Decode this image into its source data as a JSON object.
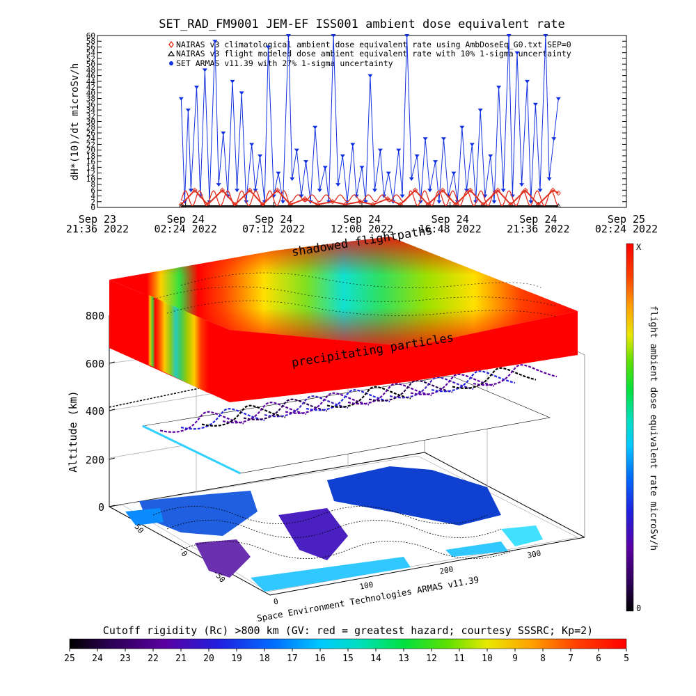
{
  "top_chart": {
    "title": "SET_RAD_FM9001  JEM-EF ISS001 ambient dose equivalent rate",
    "ylabel": "dH*(10)/dt microSv/h",
    "y_ticks": [
      "0",
      "2",
      "4",
      "6",
      "8",
      "10",
      "12",
      "14",
      "16",
      "18",
      "20",
      "22",
      "24",
      "26",
      "28",
      "30",
      "32",
      "34",
      "36",
      "38",
      "40",
      "42",
      "44",
      "46",
      "48",
      "50",
      "52",
      "54",
      "56",
      "58",
      "60"
    ],
    "x_ticks": [
      {
        "line1": "Sep 23",
        "line2": "21:36 2022"
      },
      {
        "line1": "Sep 24",
        "line2": "02:24 2022"
      },
      {
        "line1": "Sep 24",
        "line2": "07:12 2022"
      },
      {
        "line1": "Sep 24",
        "line2": "12:00 2022"
      },
      {
        "line1": "Sep 24",
        "line2": "16:48 2022"
      },
      {
        "line1": "Sep 24",
        "line2": "21:36 2022"
      },
      {
        "line1": "Sep 25",
        "line2": "02:24 2022"
      }
    ],
    "legend": [
      {
        "marker": "diamond",
        "color": "#e03020",
        "text": "NAIRAS v3 climatological ambient dose equivalent rate using AmbDoseEq_G0.txt SEP=0"
      },
      {
        "marker": "triangle",
        "color": "#000000",
        "text": "NAIRAS v3 flight modeled dose ambient equivalent rate with 10% 1-sigma uncertainty"
      },
      {
        "marker": "dot",
        "color": "#1030e0",
        "text": "SET ARMAS v11.39 with 27% 1-sigma uncertainty"
      }
    ]
  },
  "chart_data": {
    "type": "line",
    "title": "SET_RAD_FM9001  JEM-EF ISS001 ambient dose equivalent rate",
    "ylabel": "dH*(10)/dt microSv/h",
    "ylim": [
      0,
      60
    ],
    "xlim_hours_from_start": [
      0,
      28.8
    ],
    "x_unit": "hours since Sep 23 21:36 2022",
    "series": [
      {
        "name": "SET ARMAS v11.39 with 27% 1-sigma uncertainty",
        "color": "#1030e0",
        "x": [
          4.56,
          4.75,
          4.94,
          5.09,
          5.4,
          5.6,
          5.85,
          6.1,
          6.4,
          6.6,
          6.85,
          7.1,
          7.35,
          7.6,
          7.85,
          8.1,
          8.4,
          8.6,
          8.85,
          9.1,
          9.3,
          9.6,
          9.85,
          10.1,
          10.4,
          10.6,
          10.85,
          11.1,
          11.35,
          11.6,
          11.85,
          12.1,
          12.4,
          12.6,
          12.85,
          13.1,
          13.35,
          13.6,
          13.9,
          14.1,
          14.4,
          14.6,
          14.85,
          15.1,
          15.4,
          15.6,
          15.85,
          16.1,
          16.4,
          16.6,
          16.85,
          17.1,
          17.4,
          17.6,
          17.85,
          18.1,
          18.4,
          18.6,
          18.85,
          19.1,
          19.4,
          19.6,
          19.85,
          20.1,
          20.4,
          20.6,
          20.85,
          21.1,
          21.4,
          21.6,
          21.85,
          22.1,
          22.4,
          22.6,
          22.85,
          23.1,
          23.4,
          23.6,
          23.85,
          24.1,
          24.4,
          24.6,
          24.85,
          25.1
        ],
        "y": [
          38,
          2,
          34,
          6,
          42,
          4,
          48,
          2,
          58,
          8,
          26,
          4,
          44,
          6,
          40,
          2,
          22,
          6,
          18,
          2,
          56,
          4,
          12,
          2,
          60,
          10,
          20,
          4,
          16,
          2,
          28,
          6,
          14,
          2,
          60,
          8,
          18,
          2,
          22,
          4,
          14,
          2,
          46,
          6,
          20,
          4,
          12,
          2,
          20,
          4,
          60,
          10,
          18,
          2,
          24,
          6,
          16,
          2,
          24,
          4,
          12,
          2,
          28,
          6,
          22,
          2,
          34,
          4,
          18,
          2,
          42,
          6,
          60,
          4,
          54,
          8,
          44,
          2,
          36,
          6,
          60,
          10,
          24,
          38
        ]
      },
      {
        "name": "NAIRAS v3 climatological ambient dose equivalent rate using AmbDoseEq_G0.txt SEP=0",
        "color": "#e03020",
        "x": [
          4.56,
          5.3,
          6.0,
          6.8,
          7.5,
          8.3,
          9.0,
          9.8,
          10.5,
          11.3,
          12.0,
          12.8,
          13.5,
          14.3,
          15.0,
          15.8,
          16.5,
          17.3,
          18.0,
          18.8,
          19.5,
          20.3,
          21.0,
          21.8,
          22.5,
          23.3,
          24.0,
          24.8,
          25.1
        ],
        "y": [
          1,
          6,
          1,
          6,
          1,
          6,
          1,
          6,
          1,
          3,
          1,
          2,
          1,
          2,
          1,
          3,
          1,
          6,
          1,
          6,
          1,
          6,
          1,
          6,
          1,
          6,
          1,
          6,
          5
        ]
      },
      {
        "name": "NAIRAS v3 flight modeled dose ambient equivalent rate with 10% 1-sigma uncertainty",
        "color": "#000000",
        "x": [
          4.56,
          25.1
        ],
        "y": [
          0.5,
          0.5
        ]
      }
    ]
  },
  "bottom_chart": {
    "label_shadowed": "shadowed flightpaths",
    "label_precip": "precipitating particles",
    "altitude_label": "Altitude (km)",
    "altitude_ticks": [
      "0",
      "200",
      "400",
      "600",
      "800"
    ],
    "lon_ticks": [
      "0",
      "100",
      "200",
      "300"
    ],
    "lat_ticks": [
      "-50",
      "0",
      "50"
    ],
    "credit": "Space Environment Technologies ARMAS v11.39",
    "colorbar_right_label": "flight ambient dose equivalent rate microSv/h",
    "colorbar_right_top": "X",
    "colorbar_right_bottom": "0",
    "cutoff_title": "Cutoff rigidity (Rc) >800 km (GV: red = greatest hazard; courtesy SSSRC; Kp=2)",
    "cutoff_ticks": [
      "25",
      "24",
      "23",
      "22",
      "21",
      "20",
      "19",
      "18",
      "17",
      "16",
      "15",
      "14",
      "13",
      "12",
      "11",
      "10",
      "9",
      "8",
      "7",
      "6",
      "5"
    ]
  }
}
